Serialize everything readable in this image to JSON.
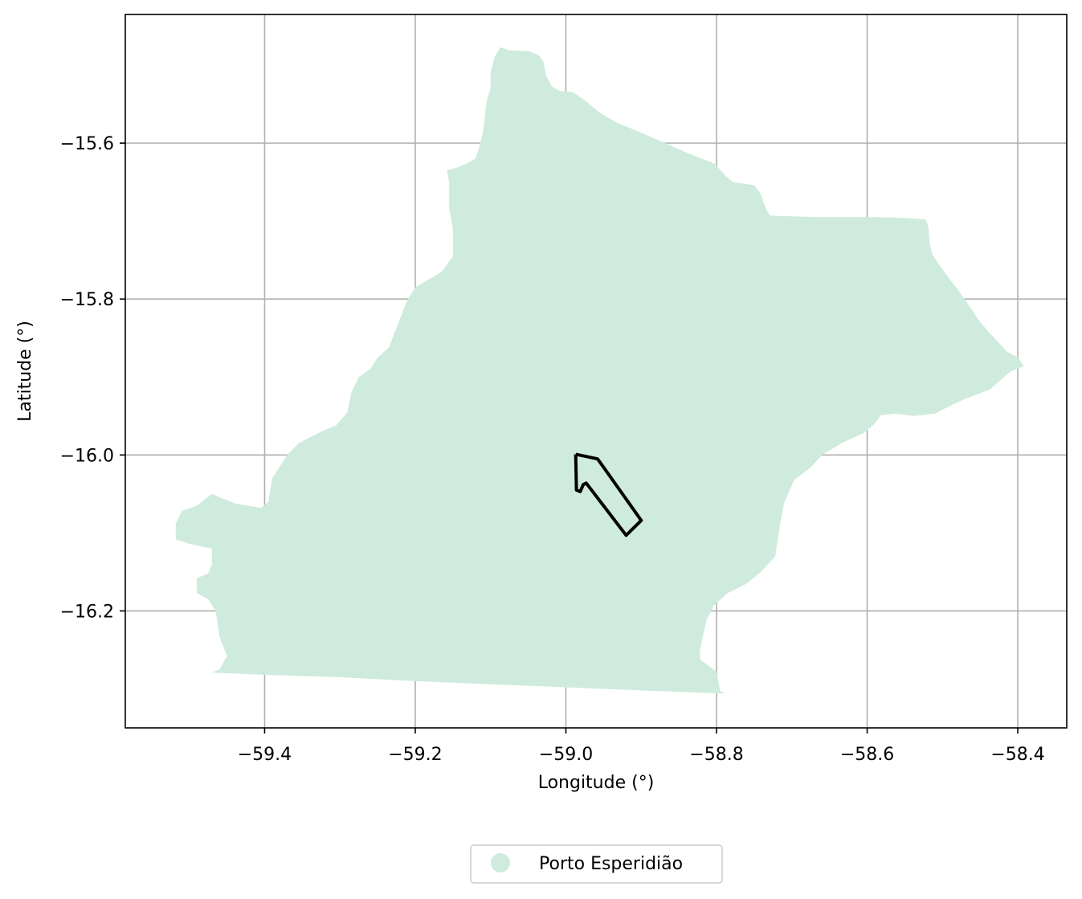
{
  "chart_data": {
    "type": "map",
    "xlabel": "Longitude (°)",
    "ylabel": "Latitude (°)",
    "xlim": [
      -59.585,
      -58.335
    ],
    "ylim": [
      -16.35,
      -15.435
    ],
    "grid": true,
    "x_ticks": [
      {
        "value": -59.4,
        "label": "−59.4"
      },
      {
        "value": -59.2,
        "label": "−59.2"
      },
      {
        "value": -59.0,
        "label": "−59.0"
      },
      {
        "value": -58.8,
        "label": "−58.8"
      },
      {
        "value": -58.6,
        "label": "−58.6"
      },
      {
        "value": -58.4,
        "label": "−58.4"
      }
    ],
    "y_ticks": [
      {
        "value": -15.6,
        "label": "−15.6"
      },
      {
        "value": -15.8,
        "label": "−15.8"
      },
      {
        "value": -16.0,
        "label": "−16.0"
      },
      {
        "value": -16.2,
        "label": "−16.2"
      }
    ],
    "legend": {
      "placement": "bottom-center",
      "entries": [
        {
          "label": "Porto Esperidião",
          "color": "#cfebde"
        }
      ]
    },
    "regions": [
      {
        "name": "Porto Esperidião",
        "fill": "#cfebde",
        "polygon": [
          [
            -59.087,
            -15.477
          ],
          [
            -59.075,
            -15.481
          ],
          [
            -59.05,
            -15.482
          ],
          [
            -59.036,
            -15.487
          ],
          [
            -59.03,
            -15.495
          ],
          [
            -59.026,
            -15.514
          ],
          [
            -59.018,
            -15.528
          ],
          [
            -59.008,
            -15.533
          ],
          [
            -58.99,
            -15.535
          ],
          [
            -58.975,
            -15.545
          ],
          [
            -58.955,
            -15.561
          ],
          [
            -58.934,
            -15.573
          ],
          [
            -58.904,
            -15.585
          ],
          [
            -58.87,
            -15.599
          ],
          [
            -58.838,
            -15.613
          ],
          [
            -58.803,
            -15.626
          ],
          [
            -58.787,
            -15.643
          ],
          [
            -58.778,
            -15.65
          ],
          [
            -58.75,
            -15.654
          ],
          [
            -58.742,
            -15.664
          ],
          [
            -58.734,
            -15.685
          ],
          [
            -58.729,
            -15.693
          ],
          [
            -58.698,
            -15.694
          ],
          [
            -58.658,
            -15.695
          ],
          [
            -58.59,
            -15.695
          ],
          [
            -58.55,
            -15.696
          ],
          [
            -58.522,
            -15.698
          ],
          [
            -58.519,
            -15.707
          ],
          [
            -58.517,
            -15.728
          ],
          [
            -58.514,
            -15.742
          ],
          [
            -58.503,
            -15.758
          ],
          [
            -58.49,
            -15.775
          ],
          [
            -58.478,
            -15.79
          ],
          [
            -58.465,
            -15.808
          ],
          [
            -58.452,
            -15.827
          ],
          [
            -58.438,
            -15.843
          ],
          [
            -58.428,
            -15.853
          ],
          [
            -58.415,
            -15.867
          ],
          [
            -58.4,
            -15.875
          ],
          [
            -58.392,
            -15.886
          ],
          [
            -58.41,
            -15.893
          ],
          [
            -58.437,
            -15.916
          ],
          [
            -58.47,
            -15.928
          ],
          [
            -58.49,
            -15.937
          ],
          [
            -58.51,
            -15.947
          ],
          [
            -58.538,
            -15.95
          ],
          [
            -58.563,
            -15.947
          ],
          [
            -58.582,
            -15.949
          ],
          [
            -58.59,
            -15.96
          ],
          [
            -58.605,
            -15.972
          ],
          [
            -58.632,
            -15.984
          ],
          [
            -58.66,
            -16.0
          ],
          [
            -58.675,
            -16.016
          ],
          [
            -58.697,
            -16.032
          ],
          [
            -58.71,
            -16.061
          ],
          [
            -58.715,
            -16.085
          ],
          [
            -58.722,
            -16.13
          ],
          [
            -58.74,
            -16.149
          ],
          [
            -58.76,
            -16.165
          ],
          [
            -58.785,
            -16.177
          ],
          [
            -58.803,
            -16.192
          ],
          [
            -58.813,
            -16.211
          ],
          [
            -58.818,
            -16.232
          ],
          [
            -58.822,
            -16.25
          ],
          [
            -58.822,
            -16.262
          ],
          [
            -58.8,
            -16.278
          ],
          [
            -58.795,
            -16.303
          ],
          [
            -58.788,
            -16.306
          ],
          [
            -58.82,
            -16.305
          ],
          [
            -58.9,
            -16.302
          ],
          [
            -59.0,
            -16.298
          ],
          [
            -59.1,
            -16.294
          ],
          [
            -59.2,
            -16.29
          ],
          [
            -59.3,
            -16.285
          ],
          [
            -59.4,
            -16.282
          ],
          [
            -59.47,
            -16.279
          ],
          [
            -59.46,
            -16.275
          ],
          [
            -59.45,
            -16.258
          ],
          [
            -59.46,
            -16.233
          ],
          [
            -59.465,
            -16.2
          ],
          [
            -59.475,
            -16.185
          ],
          [
            -59.49,
            -16.177
          ],
          [
            -59.49,
            -16.158
          ],
          [
            -59.475,
            -16.152
          ],
          [
            -59.47,
            -16.14
          ],
          [
            -59.47,
            -16.12
          ],
          [
            -59.5,
            -16.114
          ],
          [
            -59.518,
            -16.108
          ],
          [
            -59.518,
            -16.088
          ],
          [
            -59.51,
            -16.072
          ],
          [
            -59.49,
            -16.065
          ],
          [
            -59.47,
            -16.05
          ],
          [
            -59.44,
            -16.062
          ],
          [
            -59.405,
            -16.068
          ],
          [
            -59.395,
            -16.06
          ],
          [
            -59.39,
            -16.03
          ],
          [
            -59.37,
            -16.0
          ],
          [
            -59.355,
            -15.985
          ],
          [
            -59.325,
            -15.97
          ],
          [
            -59.305,
            -15.962
          ],
          [
            -59.29,
            -15.945
          ],
          [
            -59.285,
            -15.92
          ],
          [
            -59.275,
            -15.9
          ],
          [
            -59.26,
            -15.89
          ],
          [
            -59.25,
            -15.875
          ],
          [
            -59.235,
            -15.862
          ],
          [
            -59.222,
            -15.83
          ],
          [
            -59.21,
            -15.8
          ],
          [
            -59.2,
            -15.785
          ],
          [
            -59.165,
            -15.765
          ],
          [
            -59.15,
            -15.745
          ],
          [
            -59.15,
            -15.71
          ],
          [
            -59.155,
            -15.683
          ],
          [
            -59.155,
            -15.65
          ],
          [
            -59.158,
            -15.635
          ],
          [
            -59.14,
            -15.63
          ],
          [
            -59.12,
            -15.62
          ],
          [
            -59.115,
            -15.605
          ],
          [
            -59.11,
            -15.585
          ],
          [
            -59.105,
            -15.545
          ],
          [
            -59.1,
            -15.53
          ],
          [
            -59.1,
            -15.51
          ],
          [
            -59.095,
            -15.49
          ],
          [
            -59.087,
            -15.477
          ]
        ]
      }
    ],
    "outlines": [
      {
        "stroke": "#000000",
        "polyline": [
          [
            -58.987,
            -15.999
          ],
          [
            -58.958,
            -16.005
          ],
          [
            -58.952,
            -16.013
          ],
          [
            -58.9,
            -16.084
          ],
          [
            -58.92,
            -16.103
          ],
          [
            -58.973,
            -16.036
          ],
          [
            -58.977,
            -16.038
          ],
          [
            -58.981,
            -16.047
          ],
          [
            -58.986,
            -16.045
          ],
          [
            -58.987,
            -15.999
          ]
        ]
      }
    ]
  }
}
